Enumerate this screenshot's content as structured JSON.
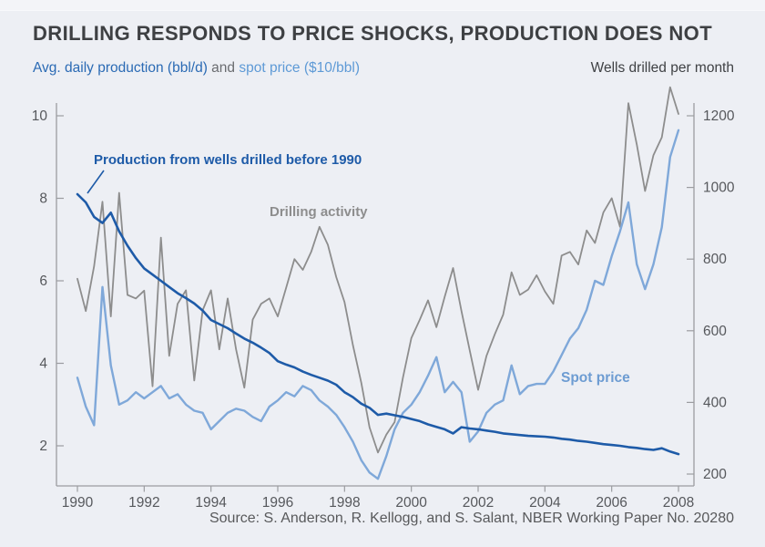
{
  "header": {
    "title": "DRILLING RESPONDS TO PRICE SHOCKS, PRODUCTION DOES NOT",
    "subtitle_production": "Avg. daily production (bbl/d)",
    "subtitle_and": " and ",
    "subtitle_spot": "spot price ($10/bbl)",
    "subtitle_right": "Wells drilled per month"
  },
  "annotations": {
    "production_label": "Production from wells drilled before 1990",
    "drilling_label": "Drilling activity",
    "spot_label": "Spot price"
  },
  "footer": {
    "source": "Source: S. Anderson, R. Kellogg, and S. Salant, NBER Working Paper No. 20280"
  },
  "colors": {
    "background": "#edeff4",
    "title_text": "#3e4043",
    "production": "#1e5ba8",
    "spot": "#7fa8d9",
    "spot_label_text": "#6d9cd2",
    "drilling": "#8d8d8d",
    "axis": "#9b9ca0",
    "tick_text": "#56585c",
    "source_text": "#58595b"
  },
  "chart_data": {
    "type": "line",
    "title": "DRILLING RESPONDS TO PRICE SHOCKS, PRODUCTION DOES NOT",
    "x_start": 1990,
    "x_step": 0.25,
    "x_ticks": [
      1990,
      1992,
      1994,
      1996,
      1998,
      2000,
      2002,
      2004,
      2006,
      2008
    ],
    "xlim": [
      1989.4,
      2008.5
    ],
    "grid": false,
    "left_axis": {
      "label": "Avg. daily production (bbl/d) and spot price ($10/bbl)",
      "ticks": [
        2,
        4,
        6,
        8,
        10
      ],
      "range": [
        1.0,
        10.5
      ]
    },
    "right_axis": {
      "label": "Wells drilled per month",
      "ticks": [
        200,
        400,
        600,
        800,
        1000,
        1200
      ],
      "range": [
        170,
        1300
      ]
    },
    "series": [
      {
        "name": "Production from wells drilled before 1990",
        "axis": "left",
        "color": "#1e5ba8",
        "values": [
          8.1,
          7.9,
          7.55,
          7.4,
          7.65,
          7.2,
          6.85,
          6.55,
          6.3,
          6.15,
          6.0,
          5.85,
          5.7,
          5.58,
          5.45,
          5.28,
          5.05,
          4.95,
          4.85,
          4.72,
          4.6,
          4.5,
          4.38,
          4.25,
          4.05,
          3.97,
          3.9,
          3.8,
          3.72,
          3.65,
          3.58,
          3.48,
          3.3,
          3.18,
          3.02,
          2.92,
          2.75,
          2.78,
          2.74,
          2.7,
          2.65,
          2.6,
          2.52,
          2.46,
          2.4,
          2.3,
          2.45,
          2.42,
          2.4,
          2.37,
          2.34,
          2.3,
          2.28,
          2.26,
          2.24,
          2.23,
          2.22,
          2.2,
          2.17,
          2.15,
          2.12,
          2.1,
          2.07,
          2.04,
          2.02,
          2.0,
          1.97,
          1.95,
          1.92,
          1.9,
          1.94,
          1.86,
          1.8
        ]
      },
      {
        "name": "Spot price",
        "axis": "left",
        "color": "#7fa8d9",
        "values": [
          3.65,
          2.95,
          2.5,
          5.85,
          3.95,
          3.0,
          3.1,
          3.3,
          3.15,
          3.3,
          3.45,
          3.15,
          3.25,
          3.0,
          2.85,
          2.8,
          2.4,
          2.6,
          2.8,
          2.9,
          2.85,
          2.7,
          2.6,
          2.95,
          3.1,
          3.3,
          3.2,
          3.45,
          3.35,
          3.1,
          2.95,
          2.75,
          2.45,
          2.1,
          1.65,
          1.35,
          1.2,
          1.75,
          2.4,
          2.8,
          3.0,
          3.3,
          3.7,
          4.15,
          3.3,
          3.55,
          3.3,
          2.1,
          2.35,
          2.8,
          3.0,
          3.1,
          3.95,
          3.25,
          3.45,
          3.5,
          3.5,
          3.8,
          4.2,
          4.6,
          4.85,
          5.3,
          6.0,
          5.9,
          6.6,
          7.2,
          7.9,
          6.4,
          5.8,
          6.4,
          7.3,
          9.0,
          9.65
        ]
      },
      {
        "name": "Drilling activity",
        "axis": "right",
        "color": "#8d8d8d",
        "values": [
          745,
          655,
          780,
          960,
          640,
          985,
          700,
          690,
          712,
          445,
          860,
          530,
          675,
          713,
          461,
          657,
          713,
          548,
          690,
          548,
          441,
          631,
          675,
          690,
          640,
          720,
          800,
          770,
          820,
          890,
          840,
          750,
          680,
          560,
          455,
          330,
          260,
          310,
          345,
          470,
          580,
          630,
          685,
          610,
          695,
          775,
          655,
          545,
          435,
          530,
          590,
          645,
          763,
          700,
          715,
          755,
          710,
          675,
          810,
          820,
          785,
          880,
          845,
          930,
          970,
          890,
          1235,
          1120,
          990,
          1090,
          1140,
          1280,
          1205
        ]
      }
    ]
  }
}
